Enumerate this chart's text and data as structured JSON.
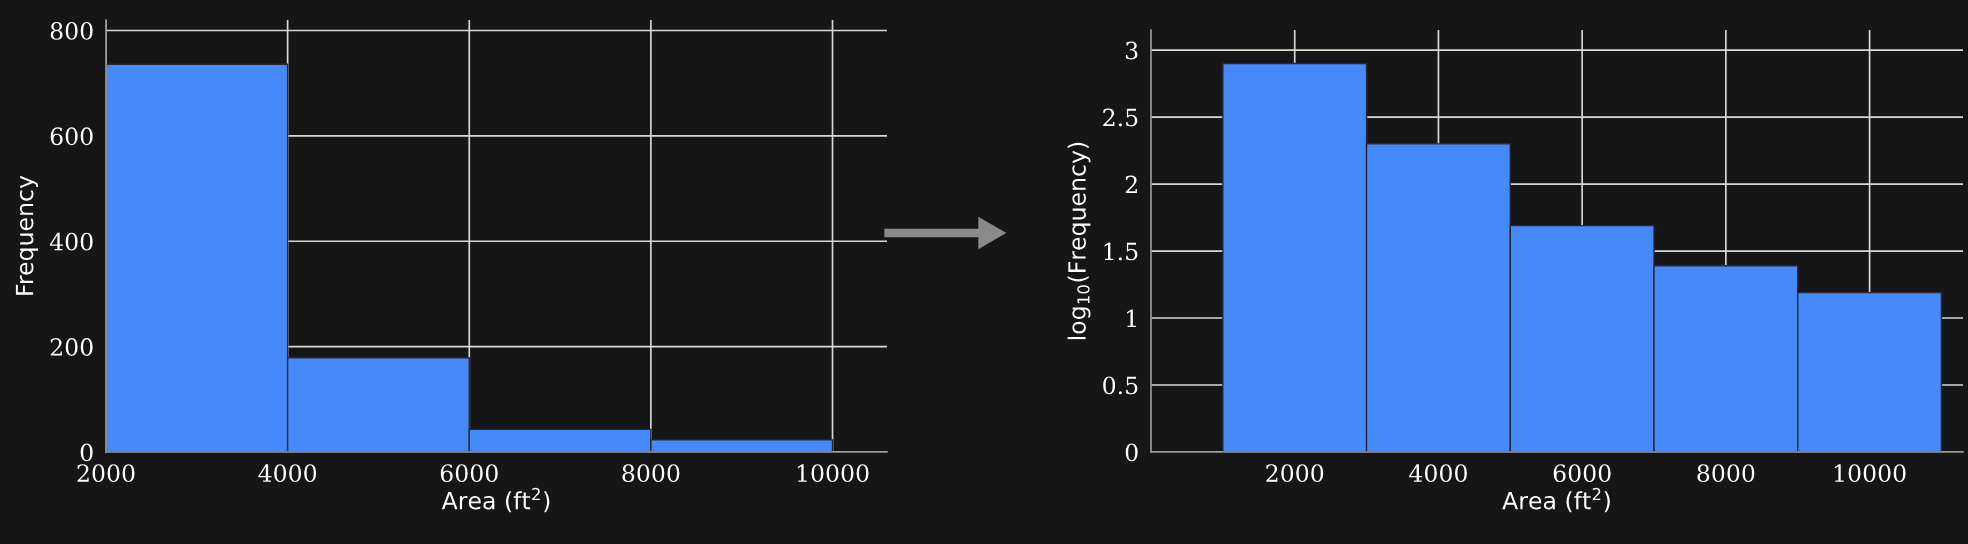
{
  "chart_data": [
    {
      "type": "histogram",
      "bins": [
        2000,
        4000,
        6000,
        8000,
        10000
      ],
      "values": [
        736,
        179,
        43,
        23
      ],
      "color": "#4589fb",
      "xlabel": "Area (ft$^{2}$)",
      "ylabel": "Frequency",
      "xlim": [
        2000,
        10600
      ],
      "ylim": [
        0,
        820
      ],
      "xticks": [
        2000,
        4000,
        6000,
        8000,
        10000
      ],
      "yticks": [
        0,
        200,
        400,
        600,
        800
      ],
      "grid": true
    },
    {
      "type": "histogram",
      "bins": [
        1000,
        3000,
        5000,
        7000,
        9000,
        11000
      ],
      "values": [
        2.9,
        2.3,
        1.69,
        1.39,
        1.19
      ],
      "color": "#4589fb",
      "xlabel": "Area (ft$^{2}$)",
      "ylabel": "log$_{10}$(Frequency)",
      "xlim": [
        0,
        11300
      ],
      "ylim": [
        0,
        3.15
      ],
      "xticks": [
        2000,
        4000,
        6000,
        8000,
        10000
      ],
      "yticks": [
        0,
        0.5,
        1,
        1.5,
        2,
        2.5,
        3
      ],
      "grid": true
    }
  ]
}
